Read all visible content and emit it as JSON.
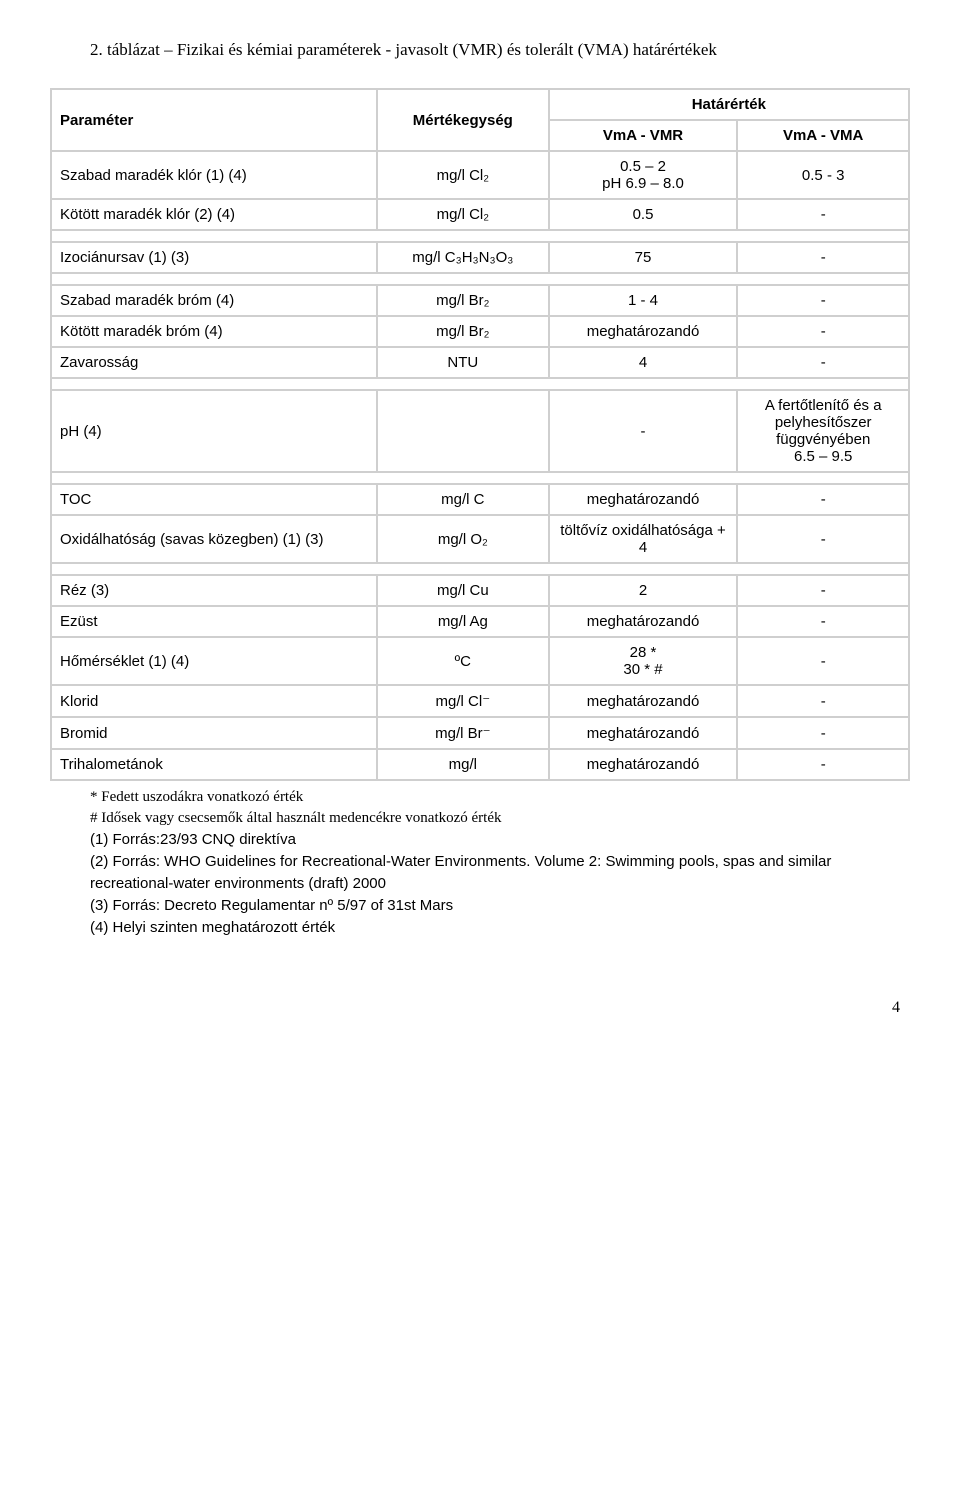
{
  "title": "2. táblázat – Fizikai és kémiai paraméterek - javasolt (VMR) és tolerált (VMA) határértékek",
  "header": {
    "param": "Paraméter",
    "unit": "Mértékegység",
    "limit": "Határérték",
    "col1": "VmA - VMR",
    "col2": "VmA - VMA"
  },
  "rows": [
    {
      "param": "Szabad maradék klór    (1) (4)",
      "unit": "mg/l Cl₂",
      "v1": "0.5 – 2\npH 6.9 – 8.0",
      "v2": "0.5 - 3"
    },
    {
      "param": "Kötött maradék klór    (2) (4)",
      "unit": "mg/l Cl₂",
      "v1": "0.5",
      "v2": "-"
    },
    {
      "spacer": true
    },
    {
      "param": "Izociánursav            (1) (3)",
      "unit": "mg/l C₃H₃N₃O₃",
      "v1": "75",
      "v2": "-"
    },
    {
      "spacer": true
    },
    {
      "param": "Szabad maradék bróm        (4)",
      "unit": "mg/l Br₂",
      "v1": "1 - 4",
      "v2": "-"
    },
    {
      "param": "Kötött maradék bróm       (4)",
      "unit": "mg/l Br₂",
      "v1": "meghatározandó",
      "v2": "-"
    },
    {
      "param": "Zavarosság",
      "unit": "NTU",
      "v1": "4",
      "v2": "-"
    },
    {
      "spacer": true
    },
    {
      "param": "pH                          (4)",
      "unit": "",
      "v1": "-",
      "v2": "A fertőtlenítő és a pelyhesítőszer függvényében\n6.5 – 9.5"
    },
    {
      "spacer": true
    },
    {
      "param": "TOC",
      "unit": "mg/l C",
      "v1": "meghatározandó",
      "v2": "-"
    },
    {
      "param": "Oxidálhatóság  (savas  közegben) (1) (3)",
      "unit": "mg/l O₂",
      "v1": "töltővíz oxidálhatósága + 4",
      "v2": "-"
    },
    {
      "spacer": true
    },
    {
      "param": "Réz                         (3)",
      "unit": "mg/l Cu",
      "v1": "2",
      "v2": "-"
    },
    {
      "param": "Ezüst",
      "unit": "mg/l Ag",
      "v1": "meghatározandó",
      "v2": "-"
    },
    {
      "param": "Hőmérséklet             (1) (4)",
      "unit": "ºC",
      "v1": "28 *\n30 * #",
      "v2": "-"
    },
    {
      "param": "Klorid",
      "unit": "mg/l Cl⁻",
      "v1": "meghatározandó",
      "v2": "-"
    },
    {
      "param": "Bromid",
      "unit": "mg/l Br⁻",
      "v1": "meghatározandó",
      "v2": "-"
    },
    {
      "param": "Trihalometánok",
      "unit": "mg/l",
      "v1": "meghatározandó",
      "v2": "-"
    }
  ],
  "notes": [
    "* Fedett uszodákra vonatkozó érték",
    "# Idősek vagy csecsemők által használt medencékre vonatkozó érték",
    "(1)  Forrás:23/93 CNQ direktíva",
    "(2)  Forrás: WHO Guidelines for Recreational-Water Environments. Volume 2: Swimming pools, spas and similar recreational-water environments (draft) 2000",
    "(3)  Forrás: Decreto Regulamentar nº 5/97 of 31st Mars",
    "(4)  Helyi szinten meghatározott érték"
  ],
  "pageNumber": "4",
  "colWidths": {
    "param": "38%",
    "unit": "20%",
    "v1": "22%",
    "v2": "20%"
  }
}
